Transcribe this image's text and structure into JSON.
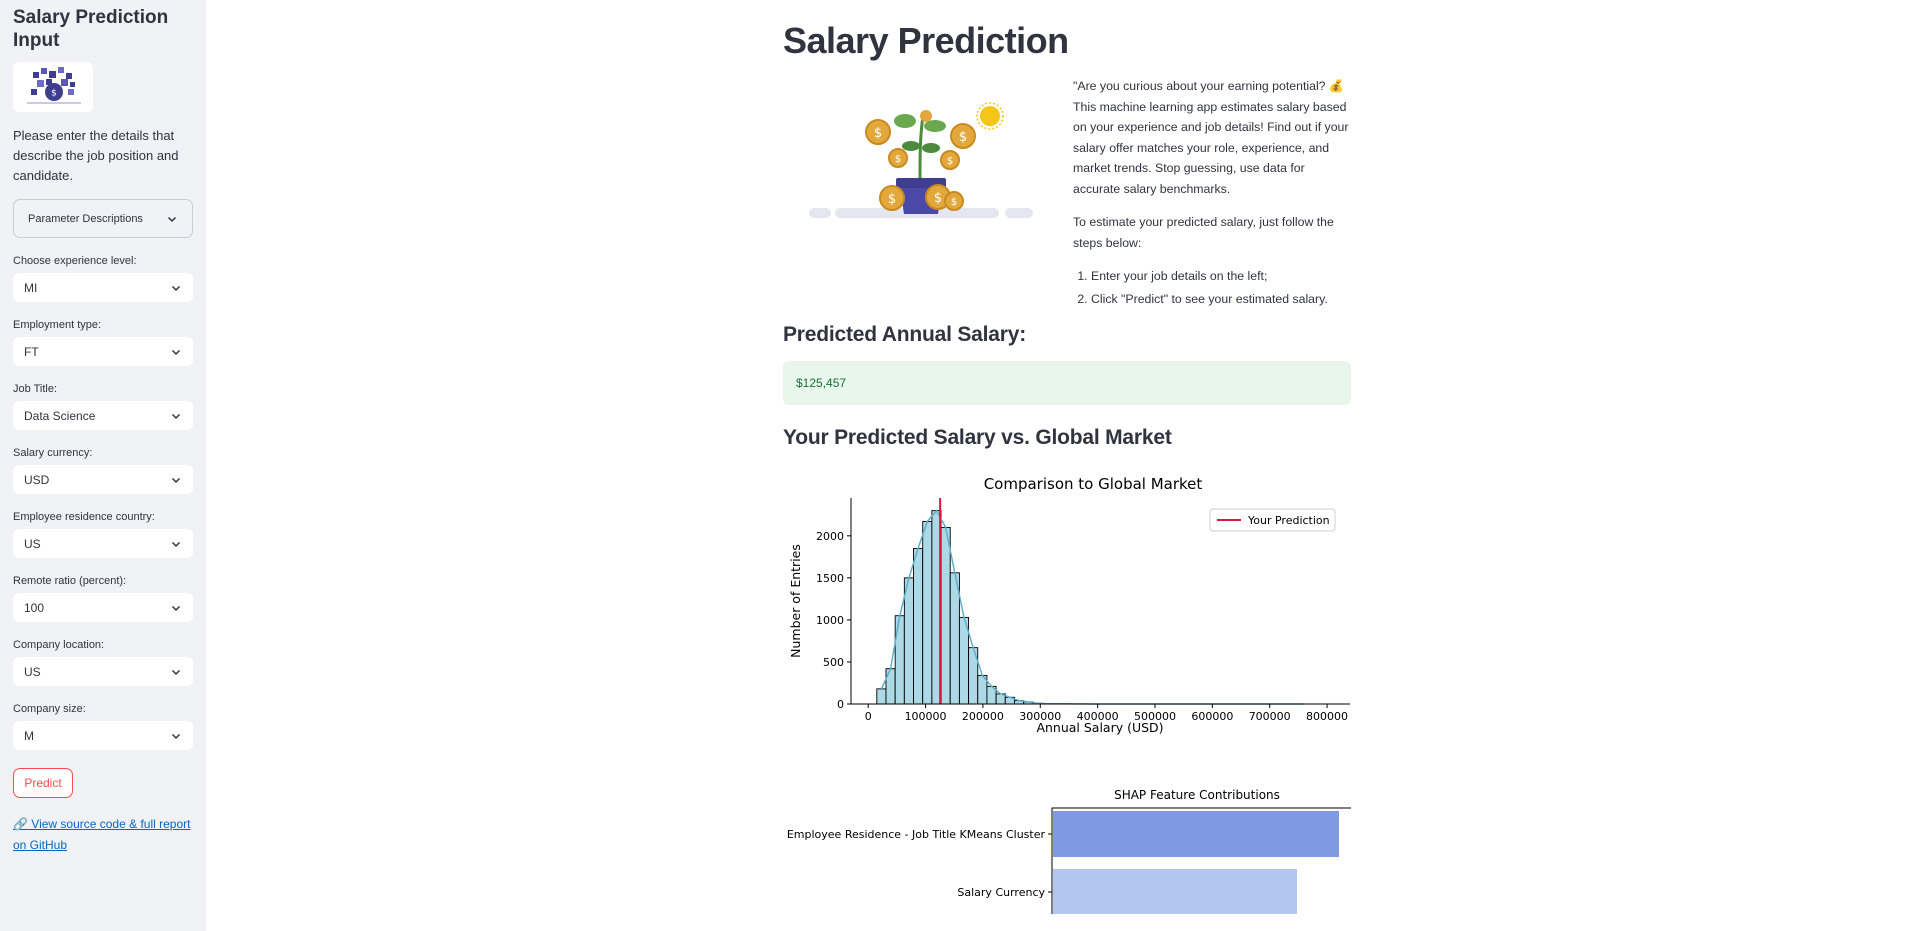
{
  "sidebar": {
    "title": "Salary Prediction Input",
    "intro": "Please enter the details that describe the job position and candidate.",
    "expander_label": "Parameter Descriptions",
    "fields": [
      {
        "label": "Choose experience level:",
        "value": "MI"
      },
      {
        "label": "Employment type:",
        "value": "FT"
      },
      {
        "label": "Job Title:",
        "value": "Data Science"
      },
      {
        "label": "Salary currency:",
        "value": "USD"
      },
      {
        "label": "Employee residence country:",
        "value": "US"
      },
      {
        "label": "Remote ratio (percent):",
        "value": "100"
      },
      {
        "label": "Company location:",
        "value": "US"
      },
      {
        "label": "Company size:",
        "value": "M"
      }
    ],
    "predict_label": "Predict",
    "link_text": "🔗 View source code & full report on GitHub"
  },
  "main": {
    "title": "Salary Prediction",
    "intro_p1": "\"Are you curious about your earning potential? 💰 This machine learning app estimates salary based on your experience and job details! Find out if your salary offer matches your role, experience, and market trends. Stop guessing, use data for accurate salary benchmarks.",
    "intro_p2": "To estimate your predicted salary, just follow the steps below:",
    "steps": [
      "Enter your job details on the left;",
      "Click \"Predict\" to see your estimated salary."
    ],
    "predicted_heading": "Predicted Annual Salary:",
    "predicted_value": "$125,457",
    "compare_heading": "Your Predicted Salary vs. Global Market"
  },
  "colors": {
    "accent": "#ff4b4b",
    "hist_fill": "#add8e6",
    "prediction_line": "#dc143c",
    "shap_bar_1": "#7f99e3",
    "shap_bar_2": "#b3c6f0"
  },
  "chart_data": [
    {
      "type": "bar",
      "title": "Comparison to Global Market",
      "xlabel": "Annual Salary (USD)",
      "ylabel": "Number of Entries",
      "xlim": [
        -30000,
        840000
      ],
      "ylim": [
        0,
        2450
      ],
      "x_ticks": [
        0,
        100000,
        200000,
        300000,
        400000,
        500000,
        600000,
        700000,
        800000
      ],
      "y_ticks": [
        0,
        500,
        1000,
        1500,
        2000
      ],
      "bin_start": 15000,
      "bin_width": 16000,
      "values": [
        180,
        420,
        1050,
        1500,
        1850,
        2170,
        2300,
        2100,
        1560,
        1030,
        670,
        340,
        210,
        120,
        80,
        40,
        25,
        10,
        5,
        3,
        2,
        1,
        1,
        0,
        0,
        0,
        0,
        0,
        0,
        0,
        0,
        0,
        0,
        0,
        0,
        0,
        0,
        0,
        0,
        0,
        0,
        0,
        0,
        0,
        0,
        0,
        0
      ],
      "prediction": 125457,
      "legend": [
        {
          "name": "Your Prediction",
          "color": "#dc143c"
        }
      ],
      "legend_position": "top-right",
      "grid": false
    },
    {
      "type": "bar",
      "orientation": "horizontal",
      "title": "SHAP Feature Contributions",
      "categories": [
        "Employee Residence - Job Title KMeans Cluster",
        "Salary Currency"
      ]
    }
  ]
}
